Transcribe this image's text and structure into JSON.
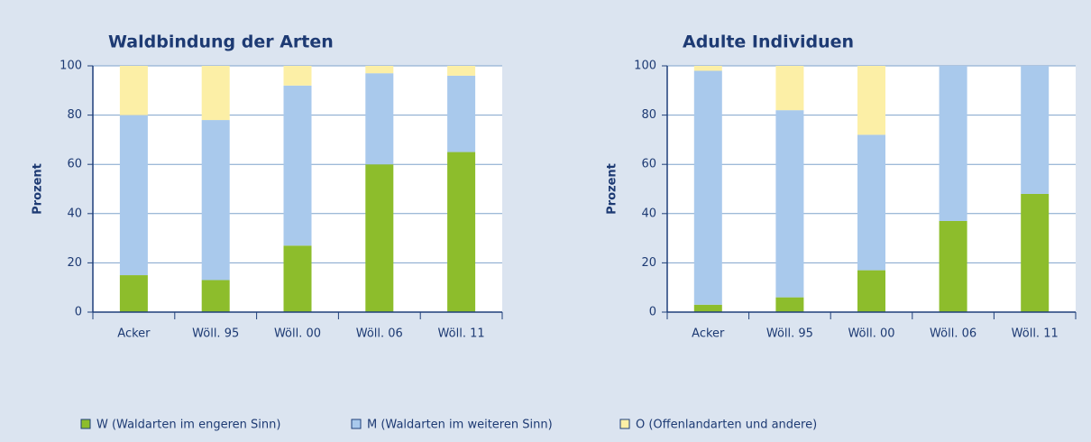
{
  "legend": [
    {
      "name": "W (Waldarten im engeren Sinn)",
      "color": "#8dbd2c"
    },
    {
      "name": "M (Waldarten im weiteren Sinn)",
      "color": "#a9c9ec"
    },
    {
      "name": "O (Offenlandarten und andere)",
      "color": "#fcefa6"
    }
  ],
  "chart_data": [
    {
      "type": "stacked_bar",
      "title": "Waldbindung der Arten",
      "y_label": "Prozent",
      "categories": [
        "Acker",
        "Wöll. 95",
        "Wöll. 00",
        "Wöll. 06",
        "Wöll. 11"
      ],
      "series": [
        {
          "values": [
            15,
            13,
            27,
            60,
            65
          ]
        },
        {
          "values": [
            65,
            65,
            65,
            37,
            31
          ]
        },
        {
          "values": [
            20,
            22,
            8,
            3,
            4
          ]
        }
      ],
      "ylim": [
        0,
        100
      ],
      "yticks": [
        0,
        20,
        40,
        60,
        80,
        100
      ],
      "grid": true
    },
    {
      "type": "stacked_bar",
      "title": "Adulte Individuen",
      "y_label": "Prozent",
      "categories": [
        "Acker",
        "Wöll. 95",
        "Wöll. 00",
        "Wöll. 06",
        "Wöll. 11"
      ],
      "series": [
        {
          "values": [
            3,
            6,
            17,
            37,
            48
          ]
        },
        {
          "values": [
            95,
            76,
            55,
            63,
            52
          ]
        },
        {
          "values": [
            2,
            18,
            28,
            0,
            0
          ]
        }
      ],
      "ylim": [
        0,
        100
      ],
      "yticks": [
        0,
        20,
        40,
        60,
        80,
        100
      ],
      "grid": true
    }
  ]
}
